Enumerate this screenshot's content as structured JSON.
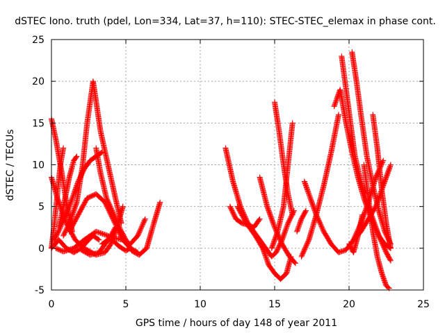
{
  "chart_data": {
    "type": "scatter",
    "title": "dSTEC Iono. truth (pdel, Lon=334, Lat=37, h=110): STEC-STEC_elemax in phase cont.",
    "xlabel": "GPS time / hours of day 148 of year 2011",
    "ylabel": "dSTEC  / TECUs",
    "xlim": [
      0,
      25
    ],
    "ylim": [
      -5,
      25
    ],
    "xticks": [
      "0",
      "5",
      "10",
      "15",
      "20",
      "25"
    ],
    "yticks": [
      "-5",
      "0",
      "5",
      "10",
      "15",
      "20",
      "25"
    ],
    "grid": true,
    "marker": "plus",
    "color": "#ff0000",
    "series": [
      {
        "x": [
          0.0,
          0.3,
          0.7,
          1.0,
          1.4
        ],
        "y": [
          15.5,
          13.0,
          9.0,
          5.5,
          2.0
        ]
      },
      {
        "x": [
          0.0,
          0.2,
          0.4,
          0.6,
          0.8
        ],
        "y": [
          0.0,
          3.0,
          6.5,
          10.0,
          12.0
        ]
      },
      {
        "x": [
          0.0,
          0.4,
          1.0,
          1.6,
          2.2,
          3.0,
          3.6,
          4.0,
          4.4,
          4.8
        ],
        "y": [
          8.5,
          6.0,
          3.0,
          1.0,
          0.0,
          -0.8,
          -0.5,
          0.5,
          2.5,
          5.0
        ]
      },
      {
        "x": [
          0.3,
          0.8,
          1.5,
          2.2,
          3.0,
          3.8,
          4.5,
          5.0,
          5.3
        ],
        "y": [
          0.0,
          -0.4,
          0.0,
          1.0,
          2.0,
          1.5,
          0.3,
          -0.3,
          0.0
        ]
      },
      {
        "x": [
          0.5,
          0.8,
          1.2,
          1.5,
          1.7
        ],
        "y": [
          2.5,
          5.0,
          8.5,
          10.5,
          11.0
        ]
      },
      {
        "x": [
          0.2,
          0.6,
          1.2,
          1.8,
          2.2,
          2.6,
          3.0,
          3.4
        ],
        "y": [
          1.0,
          2.5,
          5.0,
          8.0,
          9.5,
          10.5,
          11.0,
          11.5
        ]
      },
      {
        "x": [
          0.0,
          0.5,
          1.0,
          1.5,
          2.0,
          2.5,
          2.8,
          3.2
        ],
        "y": [
          0.0,
          1.0,
          0.0,
          -0.5,
          0.0,
          1.0,
          1.5,
          1.0
        ]
      },
      {
        "x": [
          0.8,
          1.2,
          1.7,
          2.1,
          2.4,
          2.8,
          3.3,
          3.8,
          4.3,
          4.7
        ],
        "y": [
          1.5,
          3.0,
          5.5,
          10.0,
          15.0,
          20.0,
          14.0,
          10.0,
          6.0,
          3.0
        ]
      },
      {
        "x": [
          1.2,
          1.8,
          2.4,
          3.0,
          3.6,
          4.0,
          4.4,
          4.8,
          5.3,
          5.8
        ],
        "y": [
          2.0,
          4.0,
          6.0,
          6.5,
          5.5,
          4.0,
          2.5,
          1.0,
          0.0,
          -0.5
        ]
      },
      {
        "x": [
          2.0,
          2.6,
          3.2,
          3.6,
          4.0,
          4.3
        ],
        "y": [
          -0.2,
          -0.8,
          -0.5,
          0.5,
          1.5,
          2.5
        ]
      },
      {
        "x": [
          3.0,
          3.3,
          3.7,
          4.2,
          4.7,
          5.0,
          5.4,
          5.9,
          6.4,
          6.8,
          7.3
        ],
        "y": [
          12.0,
          9.0,
          6.0,
          4.0,
          2.0,
          1.0,
          -0.3,
          -0.8,
          0.0,
          2.5,
          5.5
        ]
      },
      {
        "x": [
          3.4,
          3.8,
          4.3,
          4.8,
          5.3,
          5.8,
          6.3
        ],
        "y": [
          0.5,
          1.0,
          1.2,
          1.0,
          0.5,
          1.5,
          3.5
        ]
      },
      {
        "x": [
          11.7,
          12.2,
          12.7,
          13.2,
          13.8,
          14.4,
          14.8,
          15.1,
          15.5,
          15.9,
          16.3
        ],
        "y": [
          12.0,
          8.0,
          5.0,
          3.0,
          1.5,
          0.0,
          -1.0,
          -0.5,
          1.0,
          3.0,
          4.5
        ]
      },
      {
        "x": [
          12.0,
          12.4,
          12.8,
          13.2,
          13.6,
          14.0
        ],
        "y": [
          5.0,
          3.5,
          3.0,
          2.8,
          2.5,
          3.5
        ]
      },
      {
        "x": [
          12.5,
          13.1,
          13.7,
          14.2,
          14.6,
          15.0,
          15.4,
          15.8,
          16.1
        ],
        "y": [
          5.0,
          3.0,
          1.5,
          0.0,
          -2.0,
          -3.0,
          -3.7,
          -3.0,
          -1.0
        ]
      },
      {
        "x": [
          14.0,
          14.5,
          15.0,
          15.5,
          16.0,
          16.4
        ],
        "y": [
          8.5,
          5.0,
          2.5,
          0.5,
          -1.0,
          -1.8
        ]
      },
      {
        "x": [
          15.0,
          15.3,
          15.6,
          15.9,
          16.2
        ],
        "y": [
          17.5,
          14.0,
          10.0,
          6.5,
          4.0
        ]
      },
      {
        "x": [
          14.8,
          15.2,
          15.6,
          15.9,
          16.2
        ],
        "y": [
          0.0,
          2.0,
          5.0,
          10.0,
          15.0
        ]
      },
      {
        "x": [
          16.5,
          16.8,
          17.1
        ],
        "y": [
          2.0,
          3.5,
          4.5
        ]
      },
      {
        "x": [
          17.0,
          17.4,
          17.8,
          18.3,
          18.8,
          19.3,
          19.8,
          20.3,
          20.8,
          21.3,
          21.8,
          22.3
        ],
        "y": [
          8.0,
          6.0,
          4.0,
          2.0,
          0.5,
          -0.5,
          -0.2,
          1.0,
          3.0,
          5.5,
          8.5,
          10.5
        ]
      },
      {
        "x": [
          16.8,
          17.3,
          17.8,
          18.3,
          18.8,
          19.3
        ],
        "y": [
          -1.0,
          1.0,
          4.0,
          7.5,
          11.5,
          16.0
        ]
      },
      {
        "x": [
          19.0,
          19.4,
          19.8,
          20.2,
          20.6,
          21.0,
          21.5,
          22.0,
          22.5,
          22.8
        ],
        "y": [
          17.0,
          19.0,
          15.0,
          11.5,
          8.5,
          6.0,
          3.5,
          1.5,
          -0.5,
          -1.5
        ]
      },
      {
        "x": [
          19.5,
          19.8,
          20.1,
          20.4,
          20.8,
          21.2,
          21.6,
          22.0,
          22.4,
          22.8
        ],
        "y": [
          23.0,
          19.0,
          15.0,
          11.0,
          8.0,
          5.5,
          3.5,
          1.5,
          0.5,
          0.0
        ]
      },
      {
        "x": [
          20.2,
          20.5,
          20.8,
          21.2,
          21.6,
          22.0,
          22.4,
          22.8
        ],
        "y": [
          23.5,
          20.0,
          16.0,
          11.0,
          7.5,
          4.5,
          2.0,
          0.5
        ]
      },
      {
        "x": [
          20.3,
          20.8,
          21.3,
          21.8,
          22.2,
          22.6,
          22.8
        ],
        "y": [
          1.0,
          2.0,
          3.5,
          5.0,
          7.0,
          9.0,
          10.0
        ]
      },
      {
        "x": [
          21.0,
          21.3,
          21.6,
          21.9,
          22.2,
          22.5,
          22.7
        ],
        "y": [
          10.0,
          6.0,
          2.0,
          -1.0,
          -3.0,
          -4.5,
          -4.8
        ]
      },
      {
        "x": [
          21.6,
          21.9,
          22.2,
          22.5,
          22.8
        ],
        "y": [
          16.0,
          12.0,
          7.0,
          3.0,
          0.0
        ]
      },
      {
        "x": [
          20.0,
          20.3,
          20.6,
          20.9
        ],
        "y": [
          0.5,
          -0.5,
          1.5,
          4.0
        ]
      }
    ]
  }
}
